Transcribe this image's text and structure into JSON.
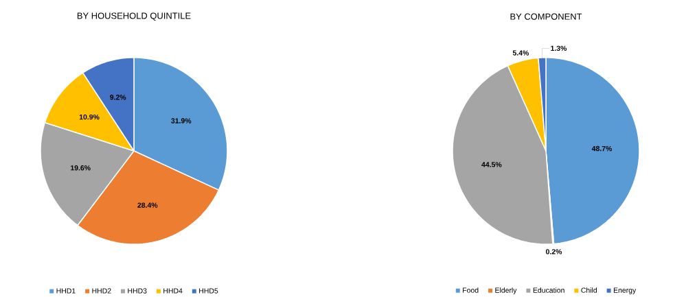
{
  "chart_data": [
    {
      "type": "pie",
      "title": "BY HOUSEHOLD QUINTILE",
      "categories": [
        "HHD1",
        "HHD2",
        "HHD3",
        "HHD4",
        "HHD5"
      ],
      "values": [
        31.9,
        28.4,
        19.6,
        10.9,
        9.2
      ],
      "value_labels": [
        "31.9%",
        "28.4%",
        "19.6%",
        "10.9%",
        "9.2%"
      ],
      "colors": [
        "#5b9bd5",
        "#ed7d31",
        "#a5a5a5",
        "#ffc000",
        "#4472c4"
      ],
      "legend": "bottom"
    },
    {
      "type": "pie",
      "title": "BY COMPONENT",
      "categories": [
        "Food",
        "Elderly",
        "Education",
        "Child",
        "Energy"
      ],
      "values": [
        48.7,
        0.2,
        44.5,
        5.4,
        1.3
      ],
      "value_labels": [
        "48.7%",
        "0.2%",
        "44.5%",
        "5.4%",
        "1.3%"
      ],
      "colors": [
        "#5b9bd5",
        "#ed7d31",
        "#a5a5a5",
        "#ffc000",
        "#4472c4"
      ],
      "legend": "bottom"
    }
  ]
}
